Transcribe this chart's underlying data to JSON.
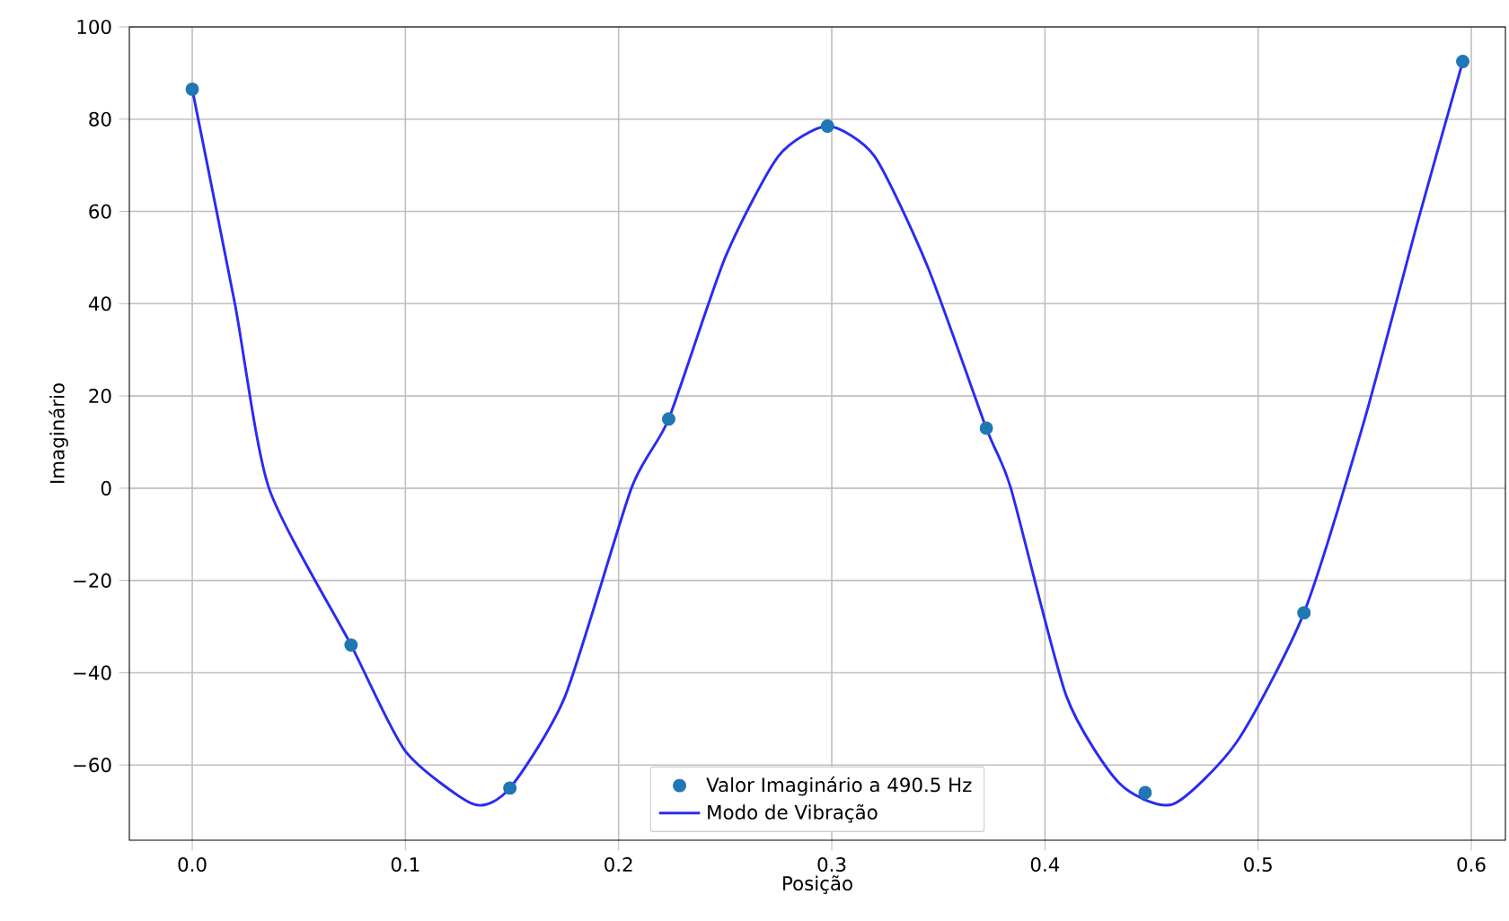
{
  "chart_data": {
    "type": "line",
    "xlabel": "Posição",
    "ylabel": "Imaginário",
    "xlim": [
      -0.0295,
      0.616
    ],
    "ylim": [
      -76.3,
      100
    ],
    "xticks": [
      {
        "value": 0,
        "label": "0.0"
      },
      0.1,
      0.2,
      0.3,
      0.4,
      0.5,
      0.6
    ],
    "yticks": [
      {
        "value": -60,
        "label": "−60"
      },
      {
        "value": -40,
        "label": "−40"
      },
      {
        "value": -20,
        "label": "−20"
      },
      0,
      20,
      40,
      60,
      80,
      100
    ],
    "grid": true,
    "legend": "bottom",
    "series": [
      {
        "name": "Valor Imaginário a 490.5 Hz",
        "type": "scatter",
        "marker": "circle",
        "color": "#1f77b4",
        "x": [
          0,
          0.0745,
          0.149,
          0.2235,
          0.298,
          0.3725,
          0.447,
          0.5215,
          0.596
        ],
        "values": [
          86.5,
          -34,
          -65,
          15,
          78.5,
          13,
          -66,
          -27,
          92.5
        ]
      },
      {
        "name": "Modo de Vibração",
        "line_style": "solid",
        "color": "#2a2af5",
        "x": [
          0,
          0.02,
          0.036,
          0.0745,
          0.1,
          0.132,
          0.149,
          0.175,
          0.206,
          0.2235,
          0.25,
          0.275,
          0.298,
          0.32,
          0.345,
          0.3725,
          0.384,
          0.41,
          0.435,
          0.46,
          0.49,
          0.5215,
          0.55,
          0.575,
          0.596
        ],
        "values": [
          86.5,
          40,
          0,
          -34,
          -57,
          -68.5,
          -65,
          -45,
          0,
          15,
          50,
          72,
          78.5,
          72,
          48,
          13,
          0,
          -45,
          -64,
          -68.5,
          -55,
          -27,
          15,
          58,
          92.5
        ]
      }
    ]
  }
}
